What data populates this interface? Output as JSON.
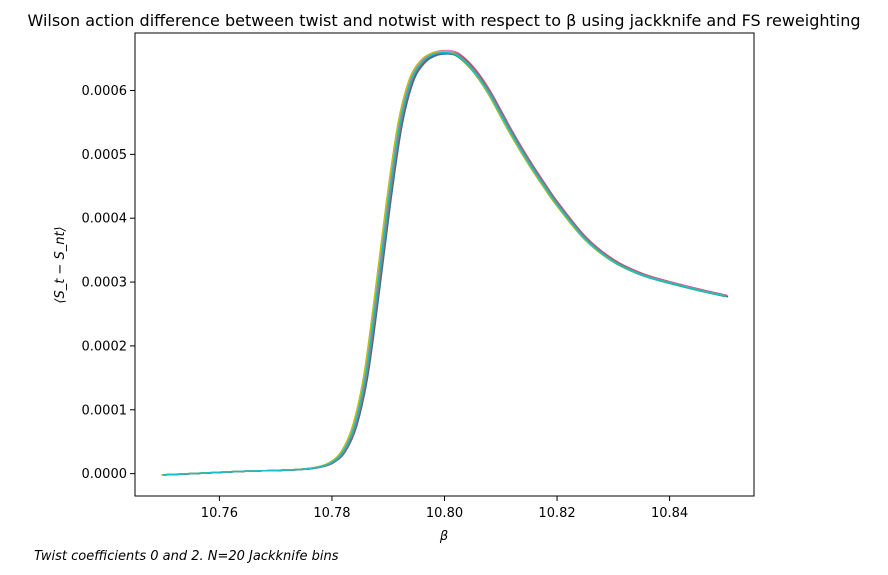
{
  "chart_data": {
    "type": "line",
    "title": "Wilson action difference between twist and notwist with respect to β using jackknife and FS reweighting",
    "xlabel": "β",
    "ylabel": "⟨S_t − S_nt⟩",
    "xlim": [
      10.745,
      10.855
    ],
    "ylim": [
      -3.5e-05,
      0.00069
    ],
    "xticks": [
      10.76,
      10.78,
      10.8,
      10.82,
      10.84
    ],
    "xtick_labels": [
      "10.76",
      "10.78",
      "10.80",
      "10.82",
      "10.84"
    ],
    "yticks": [
      0,
      0.0001,
      0.0002,
      0.0003,
      0.0004,
      0.0005,
      0.0006
    ],
    "ytick_labels": [
      "0.0000",
      "0.0001",
      "0.0002",
      "0.0003",
      "0.0004",
      "0.0005",
      "0.0006"
    ],
    "grid": false,
    "legend": "none",
    "x": [
      10.75,
      10.755,
      10.76,
      10.765,
      10.77,
      10.775,
      10.778,
      10.78,
      10.782,
      10.784,
      10.786,
      10.788,
      10.79,
      10.792,
      10.794,
      10.796,
      10.798,
      10.8,
      10.802,
      10.804,
      10.806,
      10.808,
      10.81,
      10.812,
      10.815,
      10.818,
      10.82,
      10.825,
      10.83,
      10.835,
      10.84,
      10.845,
      10.85
    ],
    "base_values": [
      -2e-06,
      0.0,
      2e-06,
      4e-06,
      5e-06,
      7e-06,
      1.1e-05,
      1.8e-05,
      3.5e-05,
      7.5e-05,
      0.000155,
      0.000285,
      0.000425,
      0.000545,
      0.000615,
      0.000645,
      0.000657,
      0.00066,
      0.000657,
      0.000643,
      0.000622,
      0.000595,
      0.000563,
      0.000531,
      0.000487,
      0.000447,
      0.000422,
      0.000368,
      0.000333,
      0.000312,
      0.000299,
      0.000288,
      0.000278
    ],
    "series": [
      {
        "color": "#1f77b4",
        "x_shift": 0.0002,
        "y_scale": 0.998
      },
      {
        "color": "#ff7f0e",
        "x_shift": -0.0001,
        "y_scale": 1.0
      },
      {
        "color": "#2ca02c",
        "x_shift": -0.0002,
        "y_scale": 1.002
      },
      {
        "color": "#d62728",
        "x_shift": 0.0001,
        "y_scale": 1.001
      },
      {
        "color": "#9467bd",
        "x_shift": 0.0003,
        "y_scale": 1.003
      },
      {
        "color": "#8c564b",
        "x_shift": 0.0,
        "y_scale": 0.999
      },
      {
        "color": "#e377c2",
        "x_shift": 0.0002,
        "y_scale": 1.004
      },
      {
        "color": "#7f7f7f",
        "x_shift": 0.0001,
        "y_scale": 1.002
      },
      {
        "color": "#bcbd22",
        "x_shift": -0.0003,
        "y_scale": 1.001
      },
      {
        "color": "#17becf",
        "x_shift": -0.0001,
        "y_scale": 0.997
      },
      {
        "color": "#1f77b4",
        "x_shift": 0.0004,
        "y_scale": 0.996
      },
      {
        "color": "#ff7f0e",
        "x_shift": 0.0,
        "y_scale": 1.0
      },
      {
        "color": "#2ca02c",
        "x_shift": -0.0002,
        "y_scale": 0.999
      },
      {
        "color": "#d62728",
        "x_shift": 0.0002,
        "y_scale": 1.002
      },
      {
        "color": "#9467bd",
        "x_shift": 0.0001,
        "y_scale": 1.001
      },
      {
        "color": "#8c564b",
        "x_shift": 0.0003,
        "y_scale": 0.998
      },
      {
        "color": "#e377c2",
        "x_shift": -0.0001,
        "y_scale": 1.003
      },
      {
        "color": "#7f7f7f",
        "x_shift": 0.0002,
        "y_scale": 1.0
      },
      {
        "color": "#bcbd22",
        "x_shift": -0.0003,
        "y_scale": 1.002
      },
      {
        "color": "#17becf",
        "x_shift": 0.0,
        "y_scale": 0.999
      }
    ]
  },
  "footnote": "Twist coefficients 0 and 2. N=20 Jackknife bins"
}
